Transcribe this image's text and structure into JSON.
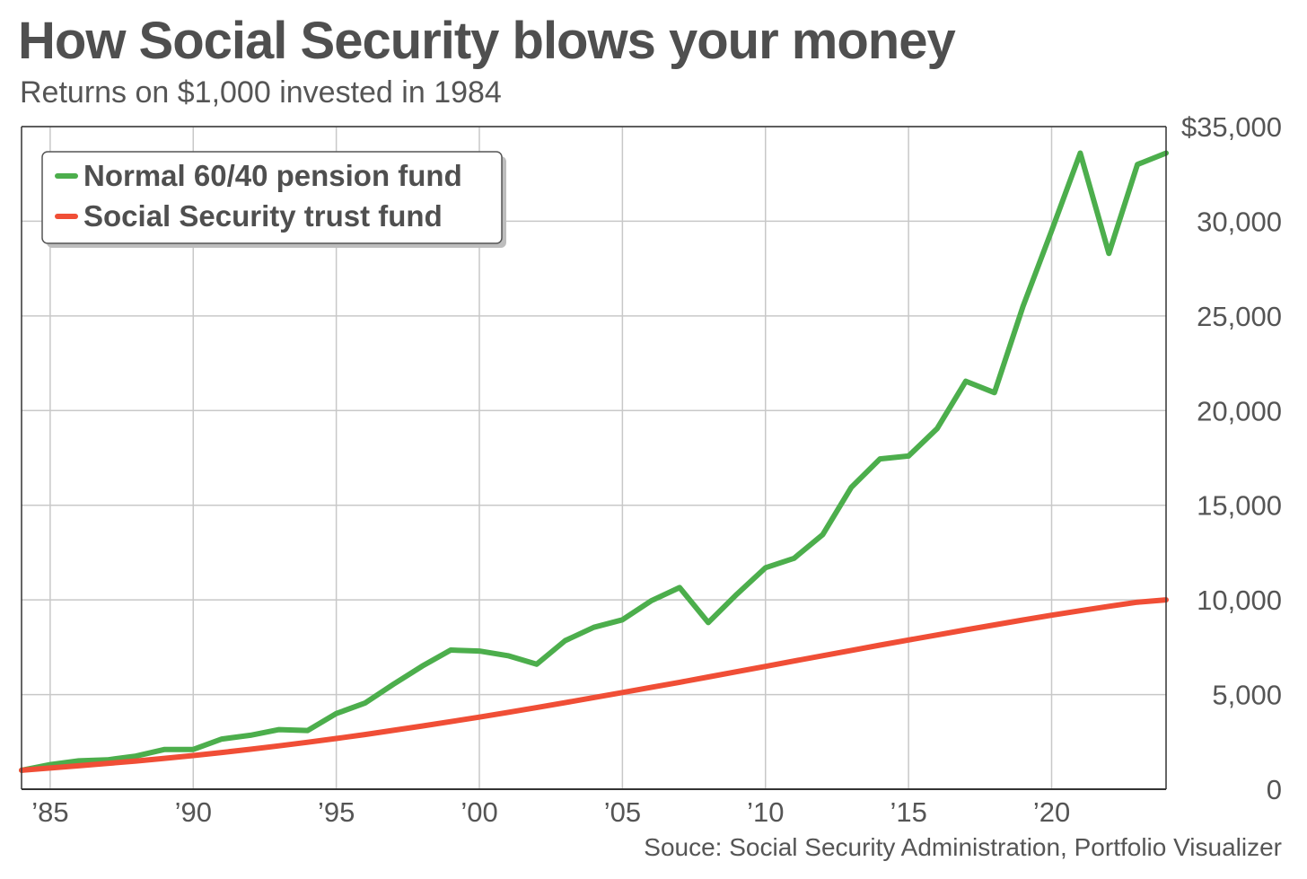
{
  "title": "How Social Security blows your money",
  "subtitle": "Returns on $1,000 invested in 1984",
  "source": "Souce: Social Security Administration, Portfolio Visualizer",
  "colors": {
    "pension": "#4cae4c",
    "trust": "#f04e36",
    "grid": "#c8c8c8",
    "axis": "#333333"
  },
  "chart_data": {
    "type": "line",
    "title": "How Social Security blows your money",
    "subtitle": "Returns on $1,000 invested in 1984",
    "xlim": [
      1984,
      2024
    ],
    "ylim": [
      0,
      35000
    ],
    "grid": true,
    "y_axis_position": "right",
    "legend_position": "top-left",
    "x_ticks": [
      {
        "value": 1985,
        "label": "’85"
      },
      {
        "value": 1990,
        "label": "’90"
      },
      {
        "value": 1995,
        "label": "’95"
      },
      {
        "value": 2000,
        "label": "’00"
      },
      {
        "value": 2005,
        "label": "’05"
      },
      {
        "value": 2010,
        "label": "’10"
      },
      {
        "value": 2015,
        "label": "’15"
      },
      {
        "value": 2020,
        "label": "’20"
      }
    ],
    "y_ticks": [
      {
        "value": 0,
        "label": "0"
      },
      {
        "value": 5000,
        "label": "5,000"
      },
      {
        "value": 10000,
        "label": "10,000"
      },
      {
        "value": 15000,
        "label": "15,000"
      },
      {
        "value": 20000,
        "label": "20,000"
      },
      {
        "value": 25000,
        "label": "25,000"
      },
      {
        "value": 30000,
        "label": "30,000"
      },
      {
        "value": 35000,
        "label": "$35,000"
      }
    ],
    "series": [
      {
        "name": "Normal 60/40 pension fund",
        "color": "#4cae4c",
        "x": [
          1984,
          1985,
          1986,
          1987,
          1988,
          1989,
          1990,
          1991,
          1992,
          1993,
          1994,
          1995,
          1996,
          1997,
          1998,
          1999,
          2000,
          2001,
          2002,
          2003,
          2004,
          2005,
          2006,
          2007,
          2008,
          2009,
          2010,
          2011,
          2012,
          2013,
          2014,
          2015,
          2016,
          2017,
          2018,
          2019,
          2020,
          2021,
          2022,
          2023,
          2024
        ],
        "y": [
          1000,
          1300,
          1500,
          1550,
          1750,
          2100,
          2100,
          2650,
          2850,
          3150,
          3100,
          4000,
          4550,
          5550,
          6500,
          7350,
          7300,
          7050,
          6600,
          7850,
          8550,
          8950,
          9950,
          10650,
          8800,
          10300,
          11700,
          12200,
          13450,
          15950,
          17450,
          17600,
          19050,
          21550,
          20950,
          25500,
          29500,
          33600,
          28300,
          33000,
          33600
        ]
      },
      {
        "name": "Social Security trust fund",
        "color": "#f04e36",
        "x": [
          1984,
          1985,
          1986,
          1987,
          1988,
          1989,
          1990,
          1991,
          1992,
          1993,
          1994,
          1995,
          1996,
          1997,
          1998,
          1999,
          2000,
          2001,
          2002,
          2003,
          2004,
          2005,
          2006,
          2007,
          2008,
          2009,
          2010,
          2011,
          2012,
          2013,
          2014,
          2015,
          2016,
          2017,
          2018,
          2019,
          2020,
          2021,
          2022,
          2023,
          2024
        ],
        "y": [
          1000,
          1120,
          1240,
          1360,
          1490,
          1630,
          1780,
          1940,
          2110,
          2290,
          2480,
          2680,
          2890,
          3110,
          3340,
          3570,
          3810,
          4060,
          4310,
          4570,
          4840,
          5110,
          5380,
          5650,
          5930,
          6210,
          6490,
          6770,
          7050,
          7330,
          7610,
          7880,
          8150,
          8420,
          8680,
          8940,
          9190,
          9430,
          9660,
          9880,
          10000
        ]
      }
    ]
  }
}
